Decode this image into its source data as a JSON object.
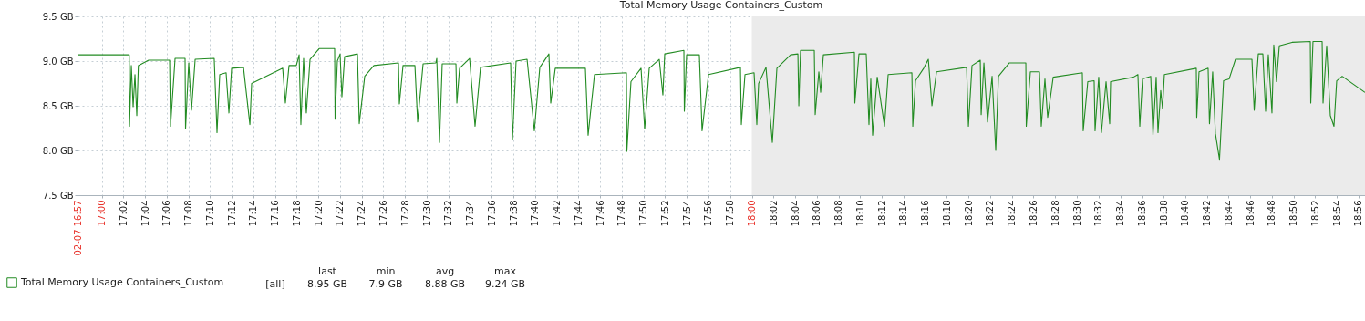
{
  "chart_data": {
    "type": "line",
    "title": "Total Memory Usage Containers_Custom",
    "xlim": [
      16.9628,
      18.9432
    ],
    "ylim": [
      7.5,
      9.5
    ],
    "yticks": [
      {
        "value": 7.5,
        "label": "7.5 GB"
      },
      {
        "value": 8.0,
        "label": "8.0 GB"
      },
      {
        "value": 8.5,
        "label": "8.5 GB"
      },
      {
        "value": 9.0,
        "label": "9.0 GB"
      },
      {
        "value": 9.5,
        "label": "9.5 GB"
      }
    ],
    "xticks": [
      {
        "value": 16.9628,
        "label": "02-07 16:57"
      },
      {
        "value": 17.0,
        "label": "17:00"
      },
      {
        "value": 17.0333,
        "label": "17:02"
      },
      {
        "value": 17.0667,
        "label": "17:04"
      },
      {
        "value": 17.1,
        "label": "17:06"
      },
      {
        "value": 17.1333,
        "label": "17:08"
      },
      {
        "value": 17.1667,
        "label": "17:10"
      },
      {
        "value": 17.2,
        "label": "17:12"
      },
      {
        "value": 17.2333,
        "label": "17:14"
      },
      {
        "value": 17.2667,
        "label": "17:16"
      },
      {
        "value": 17.3,
        "label": "17:18"
      },
      {
        "value": 17.3333,
        "label": "17:20"
      },
      {
        "value": 17.3667,
        "label": "17:22"
      },
      {
        "value": 17.4,
        "label": "17:24"
      },
      {
        "value": 17.4333,
        "label": "17:26"
      },
      {
        "value": 17.4667,
        "label": "17:28"
      },
      {
        "value": 17.5,
        "label": "17:30"
      },
      {
        "value": 17.5333,
        "label": "17:32"
      },
      {
        "value": 17.5667,
        "label": "17:34"
      },
      {
        "value": 17.6,
        "label": "17:36"
      },
      {
        "value": 17.6333,
        "label": "17:38"
      },
      {
        "value": 17.6667,
        "label": "17:40"
      },
      {
        "value": 17.7,
        "label": "17:42"
      },
      {
        "value": 17.7333,
        "label": "17:44"
      },
      {
        "value": 17.7667,
        "label": "17:46"
      },
      {
        "value": 17.8,
        "label": "17:48"
      },
      {
        "value": 17.8333,
        "label": "17:50"
      },
      {
        "value": 17.8667,
        "label": "17:52"
      },
      {
        "value": 17.9,
        "label": "17:54"
      },
      {
        "value": 17.9333,
        "label": "17:56"
      },
      {
        "value": 17.9667,
        "label": "17:58"
      },
      {
        "value": 18.0,
        "label": "18:00"
      },
      {
        "value": 18.0333,
        "label": "18:02"
      },
      {
        "value": 18.0667,
        "label": "18:04"
      },
      {
        "value": 18.1,
        "label": "18:06"
      },
      {
        "value": 18.1333,
        "label": "18:08"
      },
      {
        "value": 18.1667,
        "label": "18:10"
      },
      {
        "value": 18.2,
        "label": "18:12"
      },
      {
        "value": 18.2333,
        "label": "18:14"
      },
      {
        "value": 18.2667,
        "label": "18:16"
      },
      {
        "value": 18.3,
        "label": "18:18"
      },
      {
        "value": 18.3333,
        "label": "18:20"
      },
      {
        "value": 18.3667,
        "label": "18:22"
      },
      {
        "value": 18.4,
        "label": "18:24"
      },
      {
        "value": 18.4333,
        "label": "18:26"
      },
      {
        "value": 18.4667,
        "label": "18:28"
      },
      {
        "value": 18.5,
        "label": "18:30"
      },
      {
        "value": 18.5333,
        "label": "18:32"
      },
      {
        "value": 18.5667,
        "label": "18:34"
      },
      {
        "value": 18.6,
        "label": "18:36"
      },
      {
        "value": 18.6333,
        "label": "18:38"
      },
      {
        "value": 18.6667,
        "label": "18:40"
      },
      {
        "value": 18.7,
        "label": "18:42"
      },
      {
        "value": 18.7333,
        "label": "18:44"
      },
      {
        "value": 18.7667,
        "label": "18:46"
      },
      {
        "value": 18.8,
        "label": "18:48"
      },
      {
        "value": 18.8333,
        "label": "18:50"
      },
      {
        "value": 18.8667,
        "label": "18:52"
      },
      {
        "value": 18.9,
        "label": "18:54"
      },
      {
        "value": 18.9333,
        "label": "18:56"
      }
    ],
    "grid": true,
    "legend": "bottom left",
    "bands": [
      {
        "axis": "x",
        "from": 18.0,
        "to": 18.9432,
        "color": "#ebebeb"
      }
    ],
    "annotations": [
      "[all]",
      "last",
      "min",
      "avg",
      "max",
      "8.95 GB",
      "7.9 GB",
      "8.88 GB",
      "9.24 GB"
    ],
    "series": [
      {
        "name": "Total Memory Usage Containers_Custom",
        "color": "#228b22",
        "x": [
          16.9628,
          17.0424,
          17.0428,
          17.0456,
          17.0484,
          17.0512,
          17.054,
          17.0564,
          17.0722,
          17.1045,
          17.1059,
          17.1129,
          17.1283,
          17.129,
          17.1339,
          17.1381,
          17.1438,
          17.1731,
          17.1774,
          17.1816,
          17.1914,
          17.1957,
          17.1999,
          17.2181,
          17.228,
          17.2307,
          17.2363,
          17.2784,
          17.2826,
          17.2882,
          17.2994,
          17.3037,
          17.3064,
          17.3106,
          17.3148,
          17.3205,
          17.3345,
          17.3583,
          17.359,
          17.3625,
          17.3667,
          17.3695,
          17.3737,
          17.3934,
          17.3962,
          17.4046,
          17.4187,
          17.4565,
          17.4579,
          17.4635,
          17.4818,
          17.486,
          17.4944,
          17.514,
          17.5154,
          17.5196,
          17.5238,
          17.5449,
          17.5463,
          17.5505,
          17.5659,
          17.5743,
          17.5827,
          17.629,
          17.6318,
          17.6374,
          17.6543,
          17.6655,
          17.6739,
          17.6879,
          17.6907,
          17.6977,
          17.744,
          17.7482,
          17.758,
          17.8071,
          17.8078,
          17.8141,
          17.8296,
          17.8352,
          17.8422,
          17.8576,
          17.8632,
          17.866,
          17.8955,
          17.8962,
          17.8997,
          17.9193,
          17.9235,
          17.9334,
          17.9825,
          17.9839,
          17.9895,
          18.0035,
          18.0077,
          18.0105,
          18.0218,
          18.0316,
          18.0386,
          18.0597,
          18.0709,
          18.0723,
          18.075,
          18.0961,
          18.0975,
          18.1031,
          18.1059,
          18.1101,
          18.1578,
          18.1585,
          18.1648,
          18.176,
          18.1802,
          18.183,
          18.1858,
          18.1929,
          18.2041,
          18.2097,
          18.2462,
          18.2476,
          18.2518,
          18.2644,
          18.2715,
          18.2771,
          18.2841,
          18.3304,
          18.3332,
          18.3387,
          18.3514,
          18.3528,
          18.357,
          18.3626,
          18.3696,
          18.3752,
          18.3794,
          18.3962,
          18.4215,
          18.4222,
          18.4285,
          18.4425,
          18.4453,
          18.4509,
          18.4551,
          18.4636,
          18.5084,
          18.5098,
          18.5168,
          18.5266,
          18.528,
          18.5336,
          18.5378,
          18.5449,
          18.5505,
          18.5519,
          18.5869,
          18.5939,
          18.5968,
          18.601,
          18.6136,
          18.6171,
          18.622,
          18.6248,
          18.629,
          18.6318,
          18.6346,
          18.6837,
          18.6844,
          18.6879,
          18.7019,
          18.704,
          18.7089,
          18.7131,
          18.7194,
          18.7257,
          18.7342,
          18.744,
          18.7693,
          18.7728,
          18.7791,
          18.7861,
          18.7903,
          18.7945,
          18.8001,
          18.8029,
          18.8071,
          18.8114,
          18.831,
          18.8591,
          18.8598,
          18.8632,
          18.8773,
          18.8787,
          18.8843,
          18.8899,
          18.8955,
          18.8997,
          18.9081,
          18.9432
        ],
        "values": [
          9.07,
          9.07,
          8.27,
          8.95,
          8.49,
          8.85,
          8.39,
          8.95,
          9.01,
          9.01,
          8.27,
          9.03,
          9.03,
          8.24,
          8.98,
          8.45,
          9.02,
          9.03,
          8.2,
          8.85,
          8.87,
          8.42,
          8.92,
          8.93,
          8.29,
          8.75,
          8.77,
          8.92,
          8.53,
          8.95,
          8.95,
          9.07,
          8.29,
          9.03,
          8.42,
          9.02,
          9.14,
          9.14,
          8.35,
          9.0,
          9.08,
          8.6,
          9.05,
          9.08,
          8.3,
          8.83,
          8.95,
          8.98,
          8.52,
          8.95,
          8.95,
          8.32,
          8.97,
          8.98,
          9.03,
          8.09,
          8.97,
          8.97,
          8.53,
          8.92,
          9.03,
          8.27,
          8.93,
          8.98,
          8.12,
          9.0,
          9.02,
          8.22,
          8.93,
          9.08,
          8.53,
          8.92,
          8.92,
          8.17,
          8.85,
          8.87,
          7.99,
          8.77,
          8.92,
          8.24,
          8.92,
          9.02,
          8.62,
          9.08,
          9.12,
          8.44,
          9.07,
          9.07,
          8.22,
          8.85,
          8.93,
          8.29,
          8.85,
          8.87,
          8.29,
          8.75,
          8.93,
          8.09,
          8.92,
          9.07,
          9.08,
          8.5,
          9.12,
          9.12,
          8.4,
          8.88,
          8.65,
          9.07,
          9.1,
          8.53,
          9.08,
          9.08,
          8.29,
          8.8,
          8.17,
          8.82,
          8.27,
          8.85,
          8.87,
          8.27,
          8.78,
          8.92,
          9.02,
          8.5,
          8.88,
          8.93,
          8.27,
          8.95,
          9.01,
          8.4,
          8.98,
          8.32,
          8.83,
          8.0,
          8.83,
          8.98,
          8.98,
          8.27,
          8.88,
          8.88,
          8.27,
          8.8,
          8.37,
          8.82,
          8.87,
          8.22,
          8.77,
          8.78,
          8.22,
          8.82,
          8.2,
          8.77,
          8.3,
          8.77,
          8.82,
          8.85,
          8.27,
          8.8,
          8.83,
          8.17,
          8.82,
          8.2,
          8.67,
          8.47,
          8.85,
          8.92,
          8.37,
          8.88,
          8.92,
          8.3,
          8.88,
          8.19,
          7.9,
          8.78,
          8.8,
          9.02,
          9.02,
          8.45,
          9.08,
          9.08,
          8.44,
          9.07,
          8.42,
          9.18,
          8.77,
          9.17,
          9.21,
          9.22,
          8.53,
          9.22,
          9.22,
          8.53,
          9.17,
          8.39,
          8.27,
          8.78,
          8.83,
          8.65
        ]
      }
    ]
  }
}
